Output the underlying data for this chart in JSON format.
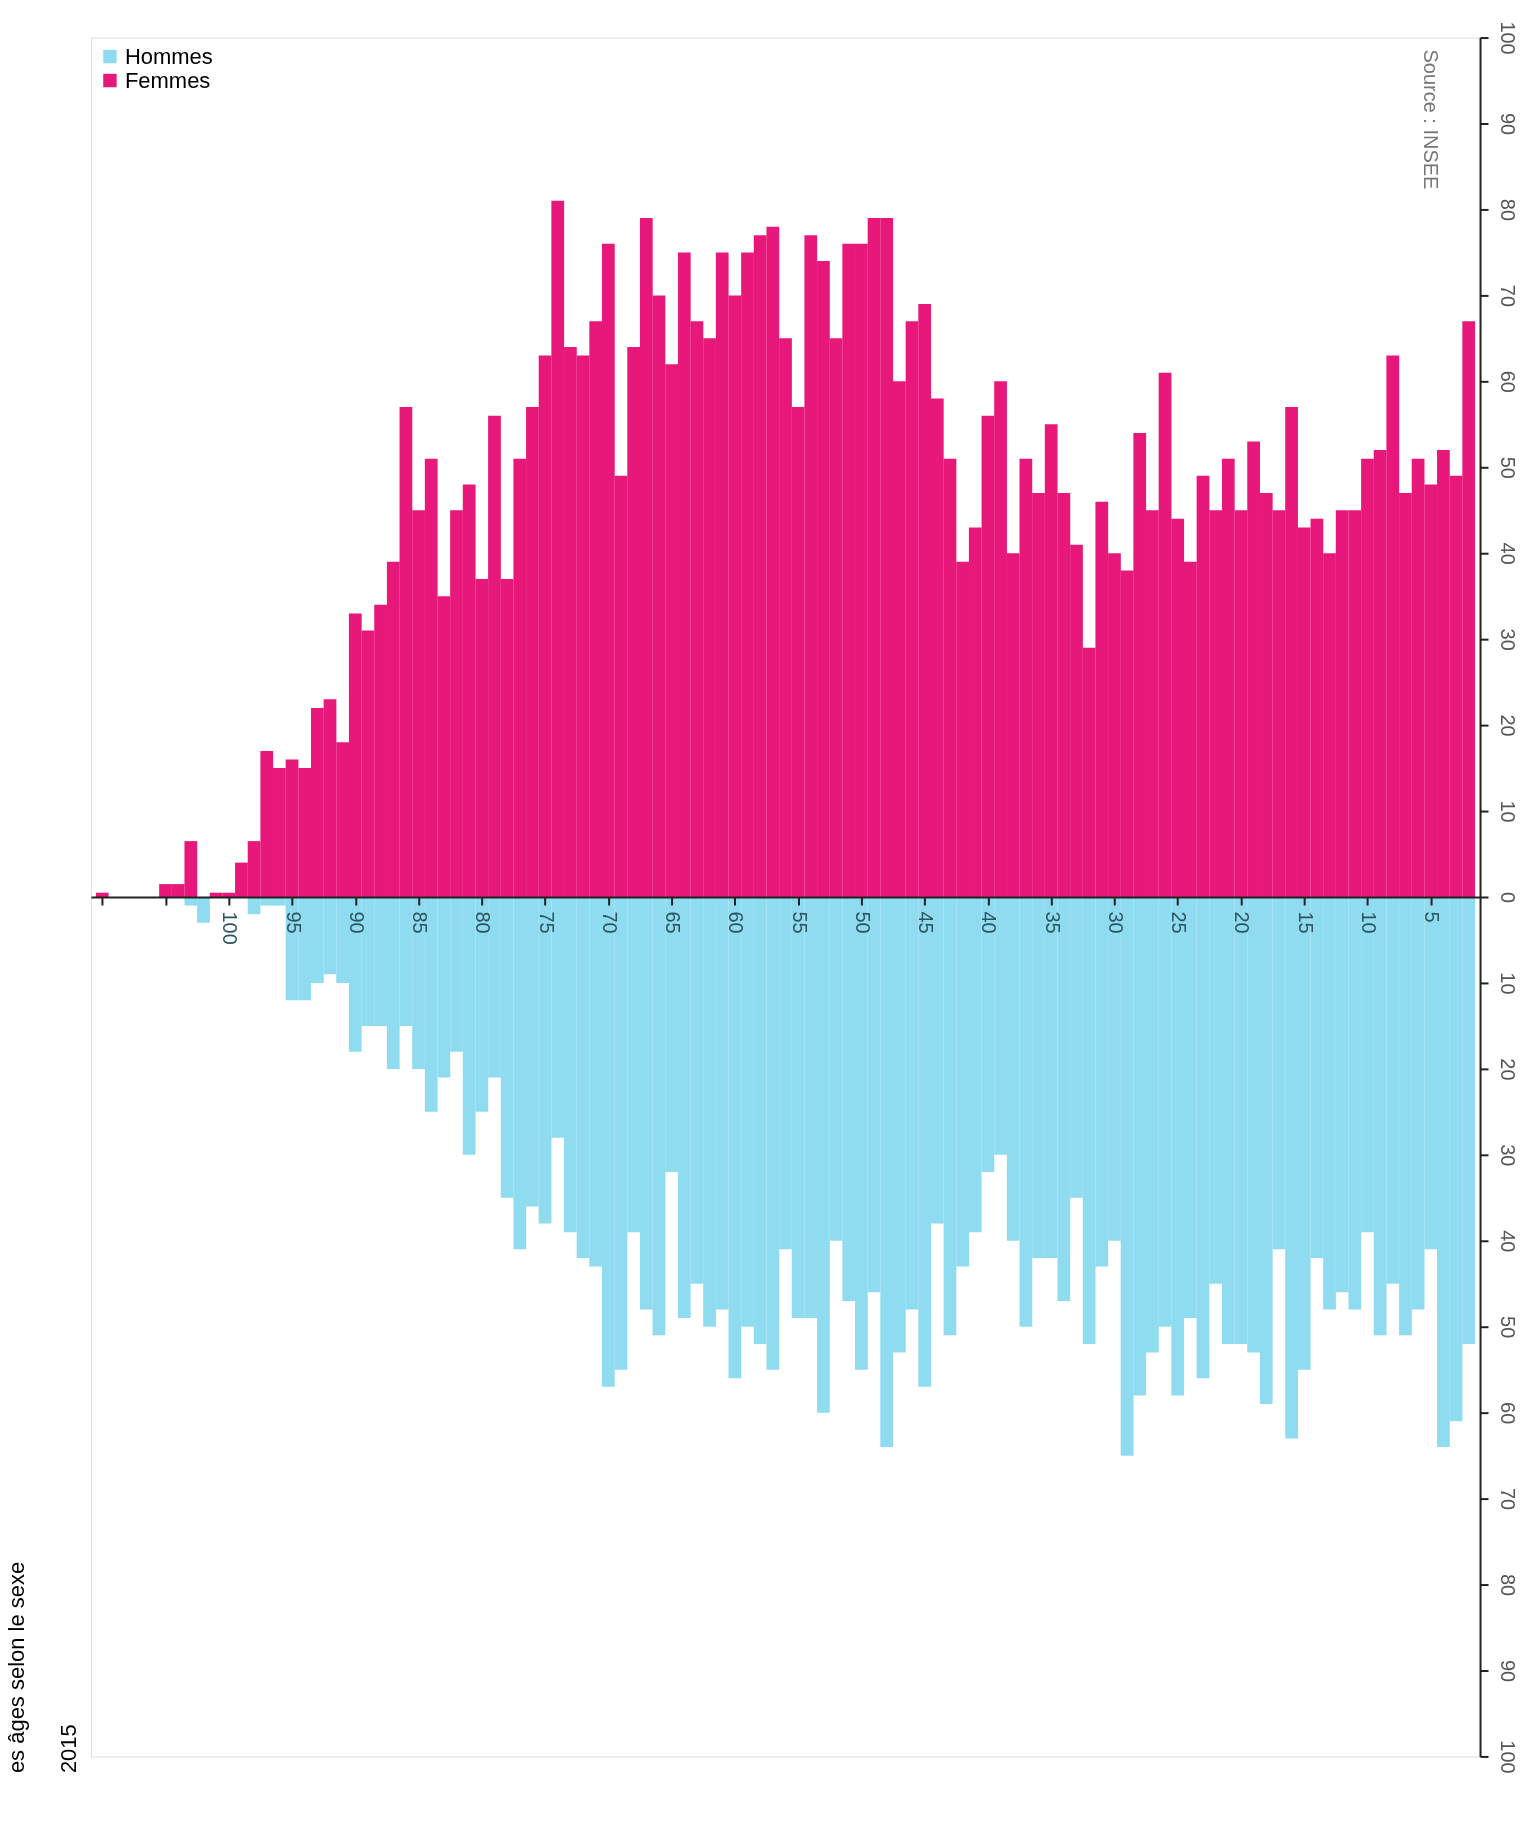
{
  "chart_data": {
    "type": "bar",
    "title": "es âges selon le sexe",
    "subtitle": "2015",
    "annotations": [
      "Source : INSEE"
    ],
    "legend": "top left",
    "stacked": true,
    "x": [
      110,
      109,
      108,
      107,
      106,
      105,
      104,
      103,
      102,
      101,
      100,
      99,
      98,
      97,
      96,
      95,
      94,
      93,
      92,
      91,
      90,
      89,
      88,
      87,
      86,
      85,
      84,
      83,
      82,
      81,
      80,
      79,
      78,
      77,
      76,
      75,
      74,
      73,
      72,
      71,
      70,
      69,
      68,
      67,
      66,
      65,
      64,
      63,
      62,
      61,
      60,
      59,
      58,
      57,
      56,
      55,
      54,
      53,
      52,
      51,
      50,
      49,
      48,
      47,
      46,
      45,
      44,
      43,
      42,
      41,
      40,
      39,
      38,
      37,
      36,
      35,
      34,
      33,
      32,
      31,
      30,
      29,
      28,
      27,
      26,
      25,
      24,
      23,
      22,
      21,
      20,
      19,
      18,
      17,
      16,
      15,
      14,
      13,
      12,
      11,
      10,
      9,
      8,
      7,
      6,
      5,
      4,
      3,
      2
    ],
    "xlim": [
      110.5,
      1.5
    ],
    "xticks": [
      {
        "value": 110,
        "label": null
      },
      {
        "value": 105,
        "label": null
      },
      100,
      95,
      90,
      85,
      80,
      75,
      70,
      65,
      60,
      55,
      50,
      45,
      40,
      35,
      30,
      25,
      20,
      15,
      10,
      5
    ],
    "ylim": [
      -100,
      100
    ],
    "yticks": [
      {
        "value": -100,
        "label": "100"
      },
      {
        "value": -90,
        "label": "90"
      },
      {
        "value": -80,
        "label": "80"
      },
      {
        "value": -70,
        "label": "70"
      },
      {
        "value": -60,
        "label": "60"
      },
      {
        "value": -50,
        "label": "50"
      },
      {
        "value": -40,
        "label": "40"
      },
      {
        "value": -30,
        "label": "30"
      },
      {
        "value": -20,
        "label": "20"
      },
      {
        "value": -10,
        "label": "10"
      },
      0,
      10,
      20,
      30,
      40,
      50,
      60,
      70,
      80,
      90,
      100
    ],
    "series": [
      {
        "name": "Hommes",
        "color": "#8fdcf0",
        "values": [
          null,
          null,
          null,
          null,
          null,
          null,
          null,
          -1,
          -3,
          null,
          null,
          null,
          -2,
          -1,
          -1,
          -12,
          -12,
          -10,
          -9,
          -10,
          -18,
          -15,
          -15,
          -20,
          -15,
          -20,
          -25,
          -21,
          -18,
          -30,
          -25,
          -21,
          -35,
          -41,
          -36,
          -38,
          -28,
          -39,
          -42,
          -43,
          -57,
          -55,
          -39,
          -48,
          -51,
          -32,
          -49,
          -45,
          -50,
          -48,
          -56,
          -50,
          -52,
          -55,
          -41,
          -49,
          -49,
          -60,
          -40,
          -47,
          -55,
          -46,
          -64,
          -53,
          -48,
          -57,
          -38,
          -51,
          -43,
          -39,
          -32,
          -30,
          -40,
          -50,
          -42,
          -42,
          -47,
          -35,
          -52,
          -43,
          -40,
          -65,
          -58,
          -53,
          -50,
          -58,
          -49,
          -56,
          -45,
          -52,
          -52,
          -53,
          -59,
          -41,
          -63,
          -55,
          -42,
          -48,
          -46,
          -48,
          -39,
          -51,
          -45,
          -51,
          -48,
          -41,
          -64,
          -61,
          -52
        ]
      },
      {
        "name": "Femmes",
        "color": "#e8177a",
        "values": [
          0.5,
          null,
          null,
          null,
          null,
          1.5,
          1.5,
          6.5,
          null,
          0.5,
          0.5,
          4,
          6.5,
          17,
          15,
          16,
          15,
          22,
          23,
          18,
          33,
          31,
          34,
          39,
          57,
          45,
          51,
          35,
          45,
          48,
          37,
          56,
          37,
          51,
          57,
          63,
          81,
          64,
          63,
          67,
          76,
          49,
          64,
          79,
          70,
          62,
          75,
          67,
          65,
          75,
          70,
          75,
          77,
          78,
          65,
          57,
          77,
          74,
          65,
          76,
          76,
          79,
          79,
          60,
          67,
          69,
          58,
          51,
          39,
          43,
          56,
          60,
          40,
          51,
          47,
          55,
          47,
          41,
          29,
          46,
          40,
          38,
          54,
          45,
          61,
          44,
          39,
          49,
          45,
          51,
          45,
          53,
          47,
          45,
          57,
          43,
          44,
          40,
          45,
          45,
          51,
          52,
          63,
          47,
          51,
          48,
          52,
          49,
          67
        ]
      }
    ]
  }
}
